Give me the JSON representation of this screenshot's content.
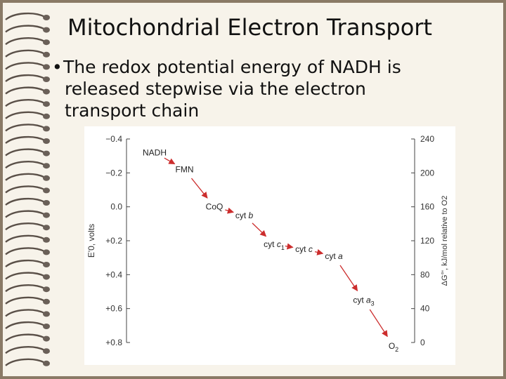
{
  "slide": {
    "title": "Mitochondrial Electron Transport",
    "bullet_symbol": "•",
    "bullet_line1": "The redox potential energy of NADH is",
    "bullet_line2": "released stepwise via the electron",
    "bullet_line3": "transport chain"
  },
  "colors": {
    "frame": "#8a7a66",
    "arrow": "#cc2d2d",
    "text": "#111111"
  },
  "chart_data": {
    "type": "scatter",
    "title": "",
    "ylabel_left": "E'0, volts",
    "ylabel_right": "ΔG°', kJ/mol relative to O2",
    "ylim": [
      0.8,
      -0.4
    ],
    "left_ticks": [
      "−0.4",
      "−0.2",
      "0.0",
      "+0.2",
      "+0.4",
      "+0.6",
      "+0.8"
    ],
    "left_tick_values": [
      -0.4,
      -0.2,
      0.0,
      0.2,
      0.4,
      0.6,
      0.8
    ],
    "right_ticks": [
      "240",
      "200",
      "160",
      "120",
      "80",
      "40",
      "0"
    ],
    "right_tick_values": [
      -0.4,
      -0.2,
      0.0,
      0.2,
      0.4,
      0.6,
      0.8
    ],
    "carriers": [
      {
        "name": "NADH",
        "sub": "",
        "italic": "",
        "x": 1,
        "e": -0.32
      },
      {
        "name": "FMN",
        "sub": "",
        "italic": "",
        "x": 2,
        "e": -0.22
      },
      {
        "name": "CoQ",
        "sub": "",
        "italic": "",
        "x": 3,
        "e": 0.0
      },
      {
        "name": "cyt ",
        "sub": "",
        "italic": "b",
        "x": 4,
        "e": 0.05
      },
      {
        "name": "cyt ",
        "sub": "1",
        "italic": "c",
        "x": 5,
        "e": 0.22
      },
      {
        "name": "cyt ",
        "sub": "",
        "italic": "c",
        "x": 6,
        "e": 0.25
      },
      {
        "name": "cyt ",
        "sub": "",
        "italic": "a",
        "x": 7,
        "e": 0.29
      },
      {
        "name": "cyt ",
        "sub": "3",
        "italic": "a",
        "x": 8,
        "e": 0.55
      },
      {
        "name": "O",
        "sub": "2",
        "italic": "",
        "x": 9,
        "e": 0.82
      }
    ]
  }
}
